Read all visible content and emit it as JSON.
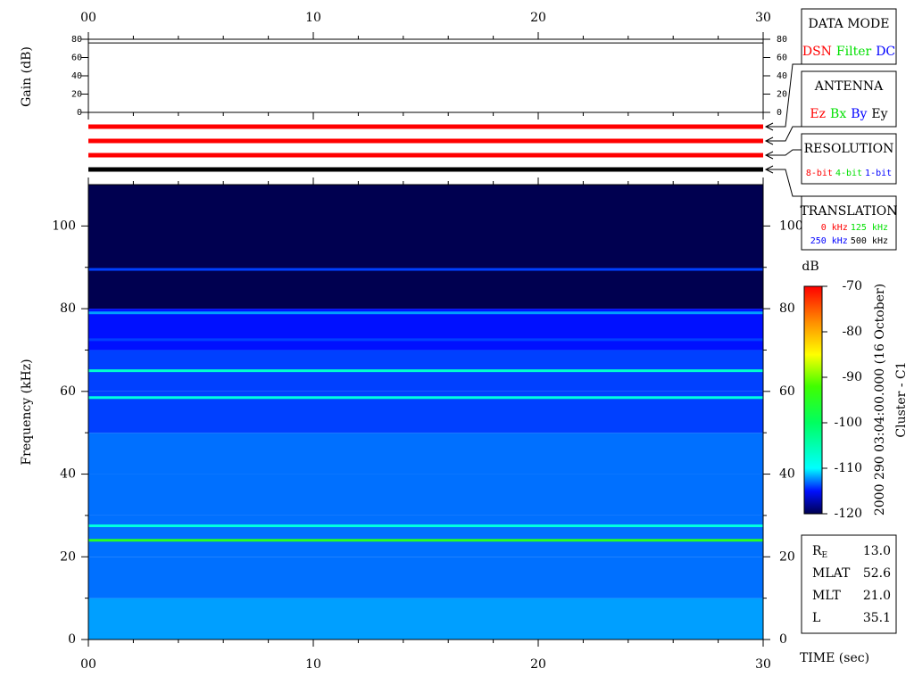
{
  "chart_data": [
    {
      "type": "line",
      "ylabel": "Gain (dB)",
      "xlim": [
        0,
        30
      ],
      "xticks": [
        {
          "value": 0,
          "label": "00"
        },
        10,
        20,
        30
      ],
      "x_minor_ticks": [
        2,
        4,
        6,
        8,
        12,
        14,
        16,
        18,
        22,
        24,
        26,
        28
      ],
      "ylim": [
        0,
        80
      ],
      "yticks": [
        0,
        20,
        40,
        60,
        80
      ],
      "series": [
        {
          "color": "#000000",
          "x": [
            0,
            30
          ],
          "values": [
            76,
            76
          ]
        }
      ]
    },
    {
      "type": "heatmap",
      "ylabel": "Frequency (kHz)",
      "xlabel": "TIME (sec)",
      "xlim": [
        0,
        30
      ],
      "xticks": [
        {
          "value": 0,
          "label": "00"
        },
        10,
        20,
        30
      ],
      "x_minor_ticks": [
        2,
        4,
        6,
        8,
        12,
        14,
        16,
        18,
        22,
        24,
        26,
        28
      ],
      "ylim": [
        0,
        110
      ],
      "yticks": [
        0,
        20,
        40,
        60,
        80,
        100
      ],
      "y_minor_ticks": [
        10,
        30,
        50,
        70,
        90
      ],
      "y_edges": [
        0,
        10,
        20,
        30,
        40,
        50,
        60,
        70,
        80,
        110
      ],
      "values": [
        -112,
        -113,
        -113,
        -113,
        -113,
        -114,
        -114,
        -115,
        -120
      ],
      "lines": [
        {
          "freq": 2,
          "value": -112
        },
        {
          "freq": 24,
          "value": -95
        },
        {
          "freq": 27.5,
          "value": -108
        },
        {
          "freq": 58.5,
          "value": -108
        },
        {
          "freq": 65,
          "value": -107
        },
        {
          "freq": 72.5,
          "value": -114
        },
        {
          "freq": 79,
          "value": -112
        },
        {
          "freq": 89.5,
          "value": -114
        }
      ],
      "colorbar": {
        "label": "dB",
        "lim": [
          -120,
          -70
        ],
        "ticks": [
          -120,
          -110,
          -100,
          -90,
          -80,
          -70
        ]
      },
      "colormap": [
        [
          -120,
          "#000050"
        ],
        [
          -115,
          "#0010ff"
        ],
        [
          -110,
          "#00ffff"
        ],
        [
          -100,
          "#00ff60"
        ],
        [
          -92,
          "#40ff00"
        ],
        [
          -85,
          "#ffff00"
        ],
        [
          -78,
          "#ff9000"
        ],
        [
          -70,
          "#ff0000"
        ]
      ]
    }
  ],
  "panels": [
    {
      "title": "DATA MODE",
      "indicator_color": "#ff0000",
      "rows": [
        [
          {
            "text": "DSN",
            "color": "#ff0000"
          },
          {
            "text": "Filter",
            "color": "#00e000"
          },
          {
            "text": "DC",
            "color": "#0000ff"
          }
        ]
      ]
    },
    {
      "title": "ANTENNA",
      "indicator_color": "#ff0000",
      "rows": [
        [
          {
            "text": "Ez",
            "color": "#ff0000"
          },
          {
            "text": "Bx",
            "color": "#00e000"
          },
          {
            "text": "By",
            "color": "#0000ff"
          },
          {
            "text": "Ey",
            "color": "#000000"
          }
        ]
      ]
    },
    {
      "title": "RESOLUTION",
      "indicator_color": "#ff0000",
      "rows": [
        [
          {
            "text": "8-bit",
            "color": "#ff0000"
          },
          {
            "text": "4-bit",
            "color": "#00e000"
          },
          {
            "text": "1-bit",
            "color": "#0000ff"
          }
        ]
      ]
    },
    {
      "title": "TRANSLATION",
      "indicator_color": "#000000",
      "rows": [
        [
          {
            "text": "0 kHz",
            "color": "#ff0000"
          },
          {
            "text": "125 kHz",
            "color": "#00e000"
          }
        ],
        [
          {
            "text": "250 kHz",
            "color": "#0000ff"
          },
          {
            "text": "500 kHz",
            "color": "#000000"
          }
        ]
      ]
    }
  ],
  "side_title": "2000 290 03:04:00.000 (16 October)",
  "side_subtitle": "Cluster - C1",
  "ephemeris": [
    {
      "label": "R",
      "subscript": "E",
      "value": "13.0"
    },
    {
      "label": "MLAT",
      "value": "52.6"
    },
    {
      "label": "MLT",
      "value": "21.0"
    },
    {
      "label": "L",
      "value": "35.1"
    }
  ]
}
